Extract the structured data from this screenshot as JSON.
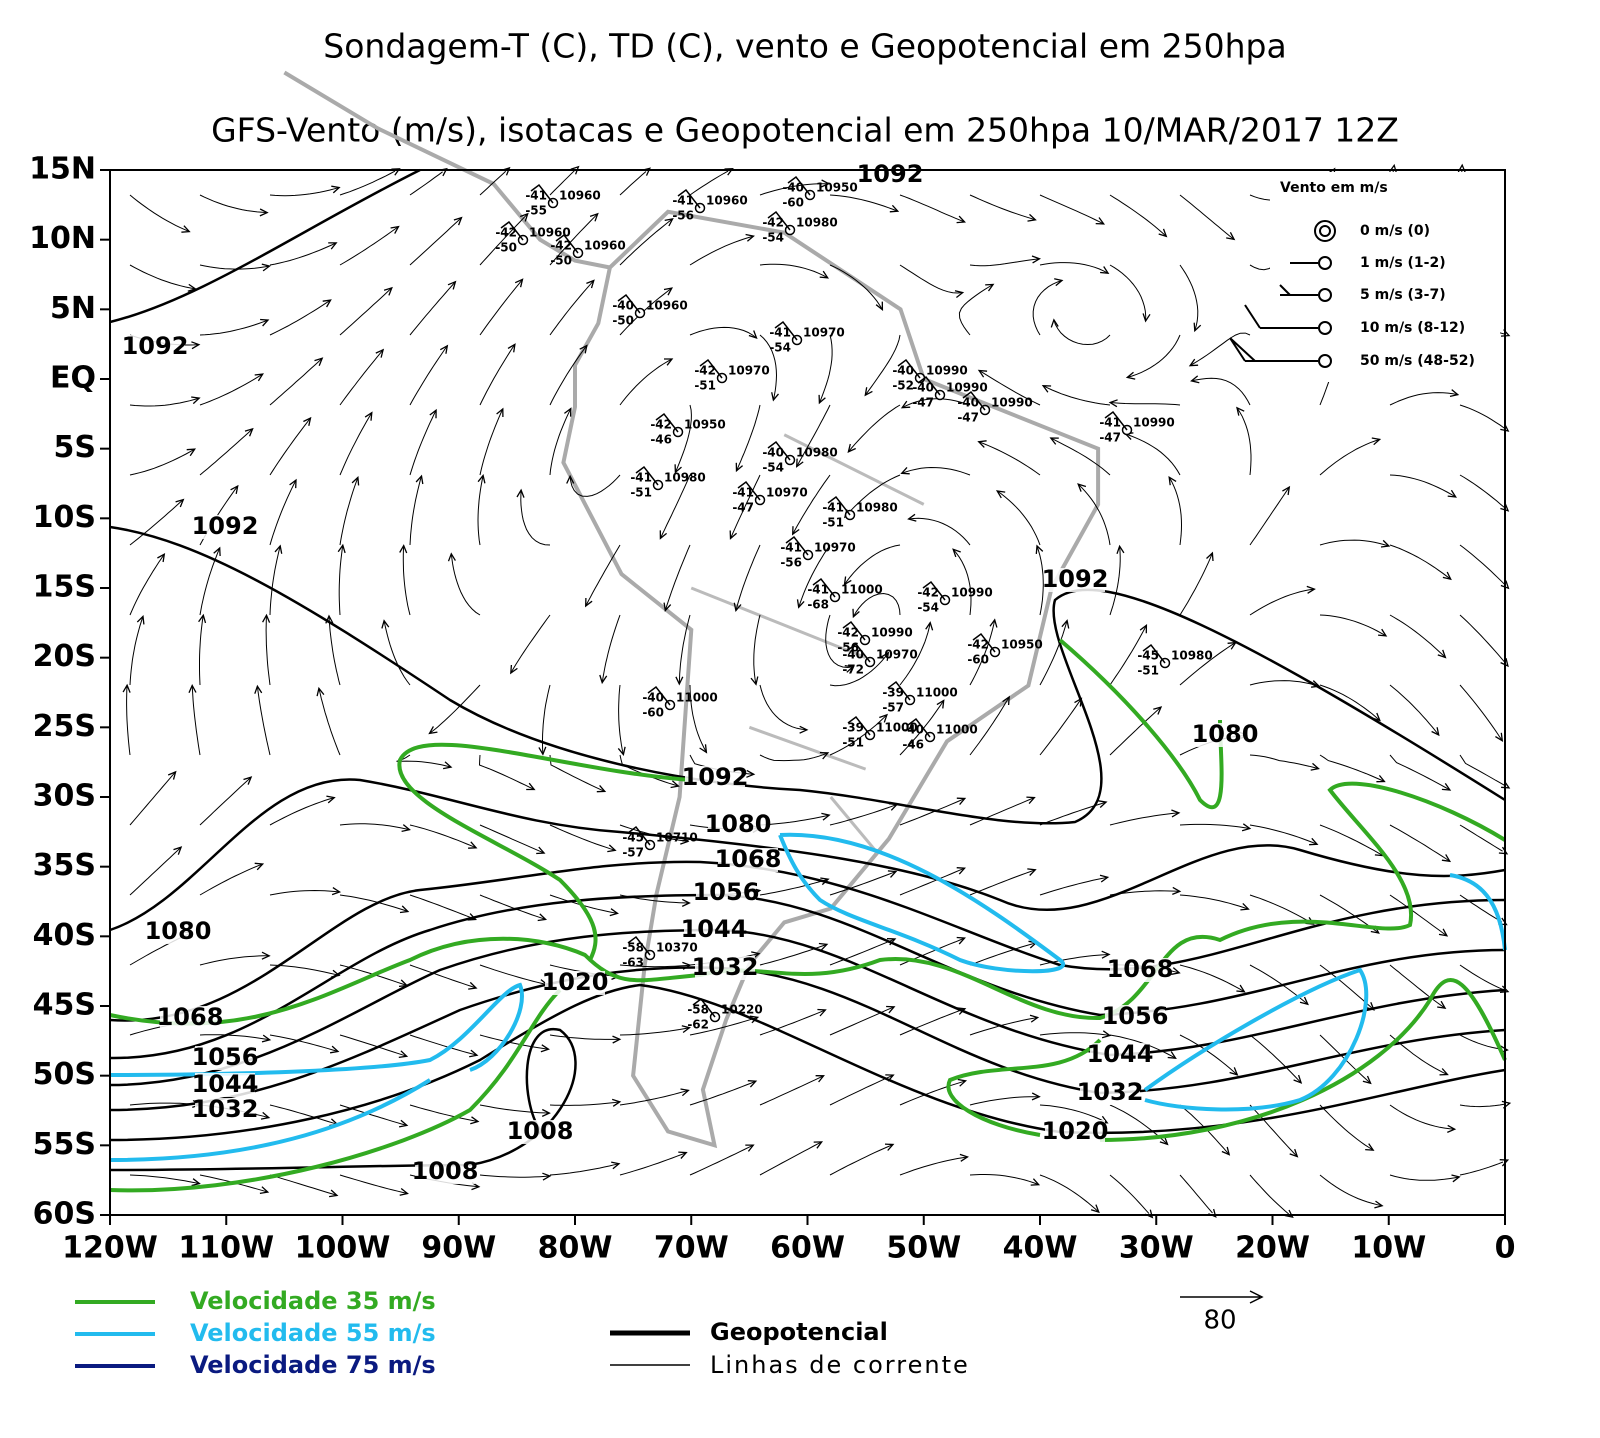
{
  "title": "Sondagem-T (C), TD (C), vento e Geopotencial em 250hpa",
  "subtitle": "GFS-Vento (m/s), isotacas e Geopotencial em 250hpa 10/MAR/2017 12Z",
  "lat_ticks": [
    {
      "value": 15,
      "label": "15N"
    },
    {
      "value": 10,
      "label": "10N"
    },
    {
      "value": 5,
      "label": "5N"
    },
    {
      "value": 0,
      "label": "EQ"
    },
    {
      "value": -5,
      "label": "5S"
    },
    {
      "value": -10,
      "label": "10S"
    },
    {
      "value": -15,
      "label": "15S"
    },
    {
      "value": -20,
      "label": "20S"
    },
    {
      "value": -25,
      "label": "25S"
    },
    {
      "value": -30,
      "label": "30S"
    },
    {
      "value": -35,
      "label": "35S"
    },
    {
      "value": -40,
      "label": "40S"
    },
    {
      "value": -45,
      "label": "45S"
    },
    {
      "value": -50,
      "label": "50S"
    },
    {
      "value": -55,
      "label": "55S"
    },
    {
      "value": -60,
      "label": "60S"
    }
  ],
  "lon_ticks": [
    {
      "value": -120,
      "label": "120W"
    },
    {
      "value": -110,
      "label": "110W"
    },
    {
      "value": -100,
      "label": "100W"
    },
    {
      "value": -90,
      "label": "90W"
    },
    {
      "value": -80,
      "label": "80W"
    },
    {
      "value": -70,
      "label": "70W"
    },
    {
      "value": -60,
      "label": "60W"
    },
    {
      "value": -50,
      "label": "50W"
    },
    {
      "value": -40,
      "label": "40W"
    },
    {
      "value": -30,
      "label": "30W"
    },
    {
      "value": -20,
      "label": "20W"
    },
    {
      "value": -10,
      "label": "10W"
    },
    0
  ],
  "contour_labels": [
    1092,
    1092,
    1092,
    1092,
    1092,
    1080,
    1080,
    1080,
    1068,
    1068,
    1068,
    1056,
    1056,
    1056,
    1044,
    1044,
    1044,
    1032,
    1032,
    1032,
    1020,
    1020,
    1008,
    1008
  ],
  "stations": [
    {
      "t": -41,
      "z": 10960,
      "td": -55
    },
    {
      "t": -42,
      "z": 10960,
      "td": -50
    },
    {
      "t": -42,
      "z": 10960,
      "td": -50
    },
    {
      "t": -40,
      "z": 10960,
      "td": -50
    },
    {
      "t": -41,
      "z": 10960,
      "td": -56
    },
    {
      "t": -42,
      "z": 10980,
      "td": -54
    },
    {
      "t": -40,
      "z": 10950,
      "td": -60
    },
    {
      "t": -41,
      "z": 10970,
      "td": -54
    },
    {
      "t": -42,
      "z": 10970,
      "td": -51
    },
    {
      "t": -42,
      "z": 10950,
      "td": -46
    },
    {
      "t": -40,
      "z": 10980,
      "td": -54
    },
    {
      "t": -41,
      "z": 10980,
      "td": -51
    },
    {
      "t": -41,
      "z": 10970,
      "td": -47
    },
    {
      "t": -41,
      "z": 10980,
      "td": -51
    },
    {
      "t": -40,
      "z": 10990,
      "td": -52
    },
    {
      "t": -40,
      "z": 10990,
      "td": -47
    },
    {
      "t": -40,
      "z": 10990,
      "td": -47
    },
    {
      "t": -41,
      "z": 10990,
      "td": -47
    },
    {
      "t": -41,
      "z": 10970,
      "td": -56
    },
    {
      "t": -41,
      "z": 11000,
      "td": -68
    },
    {
      "t": -42,
      "z": 10990,
      "td": -54
    },
    {
      "t": -42,
      "z": 10990,
      "td": -56
    },
    {
      "t": -40,
      "z": 10970,
      "td": -72
    },
    {
      "t": -42,
      "z": 10950,
      "td": -60
    },
    {
      "t": -45,
      "z": 10980,
      "td": -51
    },
    {
      "t": -40,
      "z": 11000,
      "td": -60
    },
    {
      "t": -39,
      "z": 11000,
      "td": -57
    },
    {
      "t": -39,
      "z": 11000,
      "td": -51
    },
    {
      "t": -40,
      "z": 11000,
      "td": -46
    },
    {
      "t": -45,
      "z": 10710,
      "td": -57
    },
    {
      "t": -58,
      "z": 10370,
      "td": -63
    },
    {
      "t": -58,
      "z": 10220,
      "td": -62
    }
  ],
  "wind_legend": {
    "title": "Vento em m/s",
    "entries": [
      "0 m/s (0)",
      "1 m/s (1-2)",
      "5 m/s (3-7)",
      "10 m/s (8-12)",
      "50 m/s (48-52)"
    ]
  },
  "legend": {
    "isotachs": [
      {
        "label": "Velocidade 35 m/s",
        "color": "#33aa22"
      },
      {
        "label": "Velocidade 55 m/s",
        "color": "#22bbee"
      },
      {
        "label": "Velocidade 75 m/s",
        "color": "#0a1a80"
      }
    ],
    "lines": [
      "Geopotencial",
      "Linhas de corrente"
    ]
  },
  "vector_scale": 80
}
